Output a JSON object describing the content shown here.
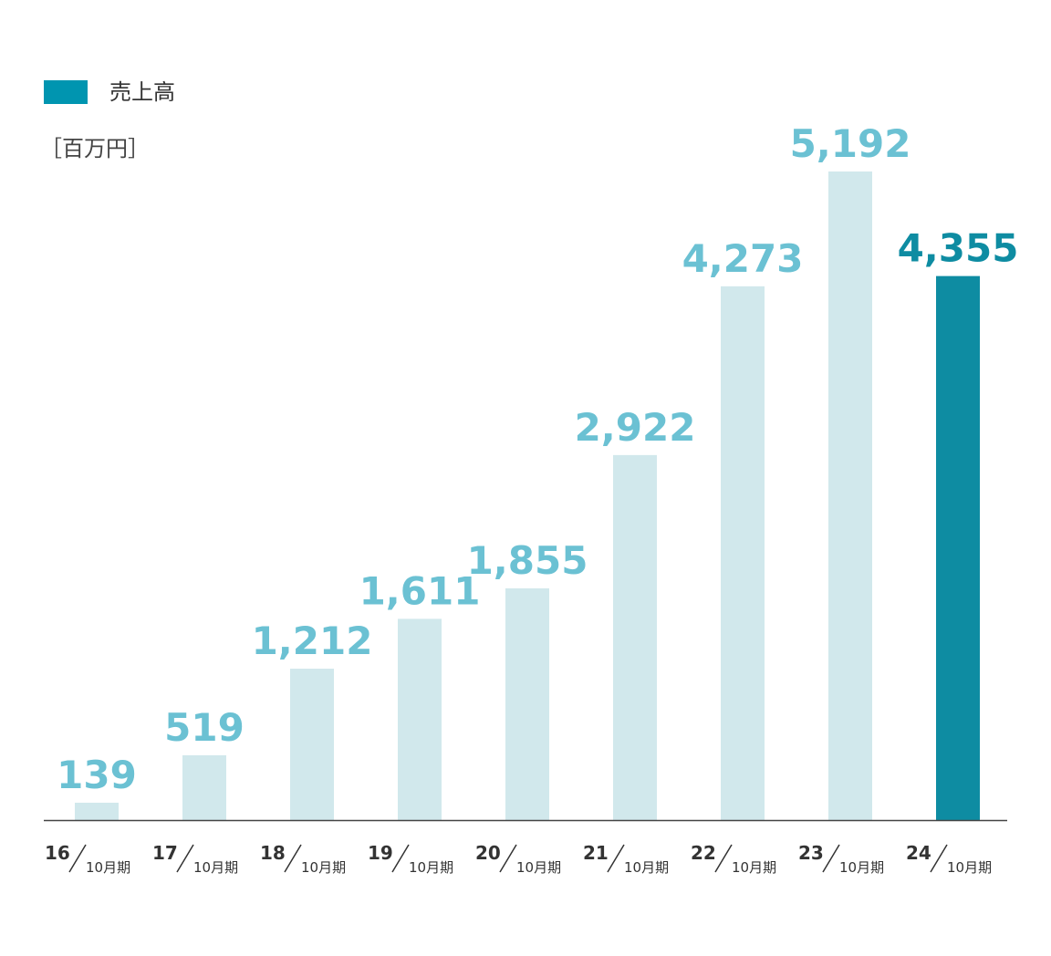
{
  "legend": {
    "label": "売上高",
    "color": "#0095b0"
  },
  "unit_label": "［百万円］",
  "colors": {
    "bar_past": "#d1e8ec",
    "bar_current": "#0e8ca2",
    "label_past": "#6bc1d3",
    "label_current": "#0e8ca2",
    "axis": "#444444"
  },
  "chart_data": {
    "type": "bar",
    "categories": [
      {
        "year": "16",
        "period": "10月期"
      },
      {
        "year": "17",
        "period": "10月期"
      },
      {
        "year": "18",
        "period": "10月期"
      },
      {
        "year": "19",
        "period": "10月期"
      },
      {
        "year": "20",
        "period": "10月期"
      },
      {
        "year": "21",
        "period": "10月期"
      },
      {
        "year": "22",
        "period": "10月期"
      },
      {
        "year": "23",
        "period": "10月期"
      },
      {
        "year": "24",
        "period": "10月期"
      }
    ],
    "values": [
      139,
      519,
      1212,
      1611,
      1855,
      2922,
      4273,
      5192,
      4355
    ],
    "value_labels": [
      "139",
      "519",
      "1,212",
      "1,611",
      "1,855",
      "2,922",
      "4,273",
      "5,192",
      "4,355"
    ],
    "highlight_index": 8,
    "ylabel": "［百万円］",
    "ylim": [
      0,
      5192
    ],
    "grid": false,
    "legend": "top-left"
  }
}
